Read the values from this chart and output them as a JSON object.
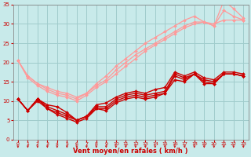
{
  "bg_color": "#c8eaea",
  "grid_color": "#a0cccc",
  "xlabel": "Vent moyen/en rafales ( km/h )",
  "xlabel_color": "#cc0000",
  "tick_color": "#cc0000",
  "xlim": [
    -0.5,
    23.5
  ],
  "ylim": [
    0,
    35
  ],
  "yticks": [
    0,
    5,
    10,
    15,
    20,
    25,
    30,
    35
  ],
  "xticks": [
    0,
    1,
    2,
    3,
    4,
    5,
    6,
    7,
    8,
    9,
    10,
    11,
    12,
    13,
    14,
    15,
    16,
    17,
    18,
    19,
    20,
    21,
    22,
    23
  ],
  "series_light": [
    {
      "x": [
        0,
        1,
        2,
        3,
        4,
        5,
        6,
        7,
        8,
        9,
        10,
        11,
        12,
        13,
        14,
        15,
        16,
        17,
        18,
        19,
        20,
        21,
        22,
        23
      ],
      "y": [
        20.5,
        16.5,
        14.5,
        13.5,
        12.5,
        12.0,
        11.0,
        12.0,
        14.5,
        16.5,
        19.0,
        21.0,
        23.0,
        25.0,
        26.5,
        28.0,
        29.5,
        31.0,
        32.0,
        30.5,
        29.5,
        36.0,
        34.0,
        31.5
      ],
      "color": "#ff9999",
      "marker": "D",
      "markersize": 2.0,
      "linewidth": 0.9
    },
    {
      "x": [
        0,
        1,
        2,
        3,
        4,
        5,
        6,
        7,
        8,
        9,
        10,
        11,
        12,
        13,
        14,
        15,
        16,
        17,
        18,
        19,
        20,
        21,
        22,
        23
      ],
      "y": [
        20.5,
        16.5,
        14.5,
        13.0,
        12.0,
        11.5,
        10.5,
        12.0,
        14.0,
        15.5,
        18.0,
        20.0,
        22.0,
        23.5,
        25.0,
        26.5,
        28.0,
        29.5,
        30.5,
        30.5,
        29.5,
        33.5,
        32.0,
        31.0
      ],
      "color": "#ff9999",
      "marker": "D",
      "markersize": 2.0,
      "linewidth": 0.9
    },
    {
      "x": [
        0,
        1,
        2,
        3,
        4,
        5,
        6,
        7,
        8,
        9,
        10,
        11,
        12,
        13,
        14,
        15,
        16,
        17,
        18,
        19,
        20,
        21,
        22,
        23
      ],
      "y": [
        20.5,
        16.0,
        14.0,
        12.5,
        11.5,
        11.0,
        10.0,
        11.5,
        13.5,
        15.0,
        17.0,
        19.0,
        21.0,
        23.0,
        24.5,
        26.0,
        27.5,
        29.0,
        30.0,
        30.5,
        30.0,
        31.0,
        31.0,
        31.0
      ],
      "color": "#ff9999",
      "marker": "D",
      "markersize": 2.0,
      "linewidth": 0.9
    }
  ],
  "series_dark": [
    {
      "x": [
        0,
        1,
        2,
        3,
        4,
        5,
        6,
        7,
        8,
        9,
        10,
        11,
        12,
        13,
        14,
        15,
        16,
        17,
        18,
        19,
        20,
        21,
        22,
        23
      ],
      "y": [
        10.5,
        7.5,
        10.5,
        9.0,
        8.5,
        7.0,
        5.0,
        6.0,
        9.0,
        9.5,
        11.0,
        12.0,
        12.5,
        12.0,
        13.0,
        13.5,
        17.5,
        16.5,
        17.5,
        16.0,
        15.5,
        17.5,
        17.5,
        17.0
      ],
      "color": "#cc0000",
      "marker": "D",
      "markersize": 2.0,
      "linewidth": 1.0
    },
    {
      "x": [
        0,
        1,
        2,
        3,
        4,
        5,
        6,
        7,
        8,
        9,
        10,
        11,
        12,
        13,
        14,
        15,
        16,
        17,
        18,
        19,
        20,
        21,
        22,
        23
      ],
      "y": [
        10.5,
        7.5,
        10.5,
        8.5,
        7.5,
        6.5,
        5.0,
        6.0,
        8.5,
        8.5,
        10.5,
        11.5,
        12.0,
        11.5,
        12.0,
        12.5,
        17.0,
        16.0,
        17.0,
        15.5,
        15.0,
        17.0,
        17.0,
        16.5
      ],
      "color": "#cc0000",
      "marker": "D",
      "markersize": 2.0,
      "linewidth": 1.0
    },
    {
      "x": [
        0,
        1,
        2,
        3,
        4,
        5,
        6,
        7,
        8,
        9,
        10,
        11,
        12,
        13,
        14,
        15,
        16,
        17,
        18,
        19,
        20,
        21,
        22,
        23
      ],
      "y": [
        10.5,
        7.5,
        10.5,
        8.0,
        7.0,
        6.0,
        5.0,
        6.0,
        8.0,
        8.0,
        10.0,
        11.0,
        11.5,
        11.0,
        11.5,
        12.0,
        16.5,
        15.5,
        17.0,
        15.0,
        14.5,
        17.0,
        17.0,
        16.5
      ],
      "color": "#cc0000",
      "marker": "D",
      "markersize": 2.0,
      "linewidth": 1.0
    },
    {
      "x": [
        0,
        1,
        2,
        3,
        4,
        5,
        6,
        7,
        8,
        9,
        10,
        11,
        12,
        13,
        14,
        15,
        16,
        17,
        18,
        19,
        20,
        21,
        22,
        23
      ],
      "y": [
        10.5,
        7.5,
        10.0,
        8.0,
        6.5,
        5.5,
        4.5,
        5.5,
        8.0,
        7.5,
        9.5,
        10.5,
        11.0,
        10.5,
        11.0,
        12.0,
        15.5,
        15.0,
        17.0,
        14.5,
        14.5,
        17.0,
        17.0,
        16.5
      ],
      "color": "#cc0000",
      "marker": "D",
      "markersize": 2.0,
      "linewidth": 1.0
    }
  ]
}
